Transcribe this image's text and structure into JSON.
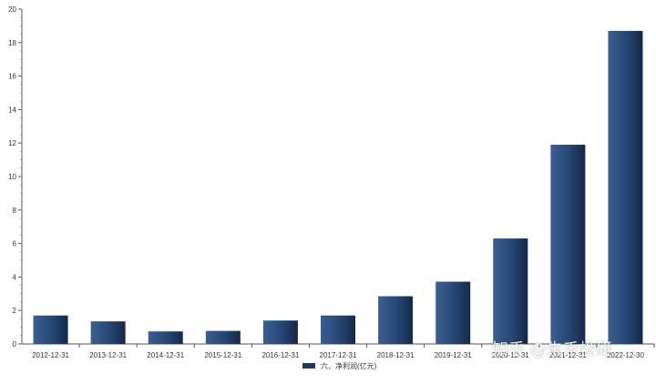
{
  "chart_data": {
    "type": "bar",
    "categories": [
      "2012-12-31",
      "2013-12-31",
      "2014-12-31",
      "2015-12-31",
      "2016-12-31",
      "2017-12-31",
      "2018-12-31",
      "2019-12-31",
      "2020-12-31",
      "2021-12-31",
      "2022-12-30"
    ],
    "series": [
      {
        "name": "六、净利润(亿元)",
        "values": [
          1.7,
          1.35,
          0.75,
          0.78,
          1.4,
          1.7,
          2.85,
          3.72,
          6.3,
          11.9,
          18.7
        ],
        "color": "#1f3a63"
      }
    ],
    "ylim": [
      0,
      20
    ],
    "yticks": [
      0,
      2,
      4,
      6,
      8,
      10,
      12,
      14,
      16,
      18,
      20
    ],
    "grid": false,
    "legend_position": "bottom-center"
  },
  "watermark": "知乎 @朱禾投研"
}
